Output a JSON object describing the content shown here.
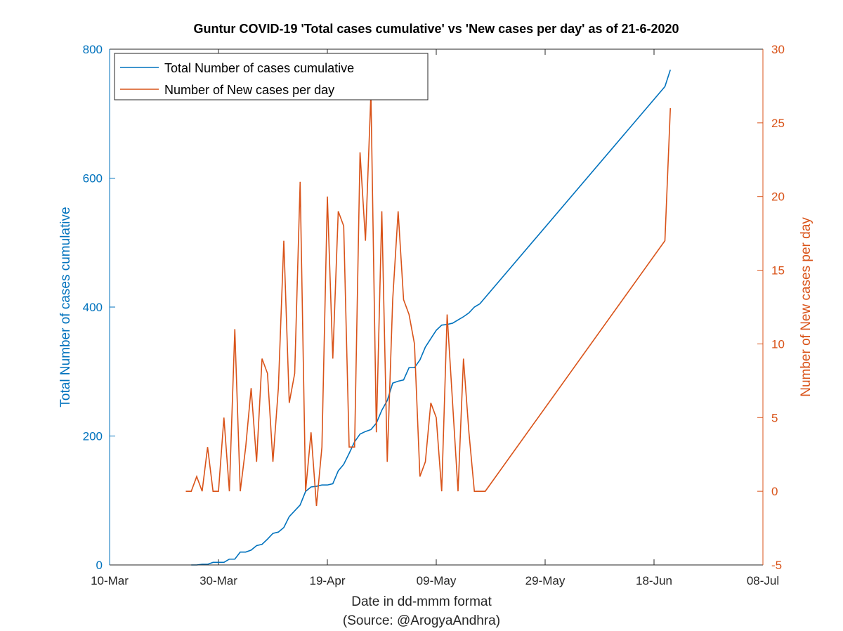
{
  "chart_data": {
    "type": "line",
    "title": "Guntur COVID-19 'Total cases cumulative' vs 'New cases per day' as of 21-6-2020",
    "xlabel": "Date in dd-mmm format",
    "source": "(Source: @ArogyaAndhra)",
    "ylabel_left": "Total Number of cases cumulative",
    "ylabel_right": "Number of New cases per day",
    "xlim": [
      "2020-03-10",
      "2020-07-08"
    ],
    "x_ticks": [
      "10-Mar",
      "30-Mar",
      "19-Apr",
      "09-May",
      "29-May",
      "18-Jun",
      "08-Jul"
    ],
    "ylim_left": [
      0,
      800
    ],
    "y_ticks_left": [
      "0",
      "200",
      "400",
      "600",
      "800"
    ],
    "ylim_right": [
      -5,
      30
    ],
    "y_ticks_right": [
      "-5",
      "0",
      "5",
      "10",
      "15",
      "20",
      "25",
      "30"
    ],
    "legend_position": "top-left",
    "grid": false,
    "colors": {
      "left": "#0072BD",
      "right": "#D95319",
      "axis": "#262626"
    },
    "series": [
      {
        "name": "Total Number of cases cumulative",
        "axis": "left",
        "color": "#0072BD",
        "x": [
          "2020-03-25",
          "2020-03-26",
          "2020-03-27",
          "2020-03-28",
          "2020-03-29",
          "2020-03-30",
          "2020-03-31",
          "2020-04-01",
          "2020-04-02",
          "2020-04-03",
          "2020-04-04",
          "2020-04-05",
          "2020-04-06",
          "2020-04-07",
          "2020-04-08",
          "2020-04-09",
          "2020-04-10",
          "2020-04-11",
          "2020-04-12",
          "2020-04-13",
          "2020-04-14",
          "2020-04-15",
          "2020-04-16",
          "2020-04-17",
          "2020-04-18",
          "2020-04-19",
          "2020-04-20",
          "2020-04-21",
          "2020-04-22",
          "2020-04-23",
          "2020-04-24",
          "2020-04-25",
          "2020-04-26",
          "2020-04-27",
          "2020-04-28",
          "2020-04-29",
          "2020-04-30",
          "2020-05-01",
          "2020-05-02",
          "2020-05-03",
          "2020-05-04",
          "2020-05-05",
          "2020-05-06",
          "2020-05-07",
          "2020-05-08",
          "2020-05-09",
          "2020-05-10",
          "2020-05-11",
          "2020-05-12",
          "2020-05-13",
          "2020-05-14",
          "2020-05-15",
          "2020-05-16",
          "2020-05-17",
          "2020-06-20",
          "2020-06-21"
        ],
        "values": [
          0,
          0,
          1,
          1,
          4,
          4,
          4,
          9,
          9,
          20,
          20,
          23,
          30,
          32,
          40,
          49,
          51,
          58,
          75,
          84,
          93,
          114,
          121,
          122,
          124,
          124,
          126,
          146,
          156,
          173,
          191,
          203,
          207,
          210,
          220,
          240,
          255,
          282,
          285,
          287,
          306,
          306,
          318,
          338,
          351,
          364,
          372,
          373,
          375,
          380,
          385,
          391,
          400,
          405,
          742,
          768
        ]
      },
      {
        "name": "Number of New cases per day",
        "axis": "right",
        "color": "#D95319",
        "x": [
          "2020-03-24",
          "2020-03-25",
          "2020-03-26",
          "2020-03-27",
          "2020-03-28",
          "2020-03-29",
          "2020-03-30",
          "2020-03-31",
          "2020-04-01",
          "2020-04-02",
          "2020-04-03",
          "2020-04-04",
          "2020-04-05",
          "2020-04-06",
          "2020-04-07",
          "2020-04-08",
          "2020-04-09",
          "2020-04-10",
          "2020-04-11",
          "2020-04-12",
          "2020-04-13",
          "2020-04-14",
          "2020-04-15",
          "2020-04-16",
          "2020-04-17",
          "2020-04-18",
          "2020-04-19",
          "2020-04-20",
          "2020-04-21",
          "2020-04-22",
          "2020-04-23",
          "2020-04-24",
          "2020-04-25",
          "2020-04-26",
          "2020-04-27",
          "2020-04-28",
          "2020-04-29",
          "2020-04-30",
          "2020-05-01",
          "2020-05-02",
          "2020-05-03",
          "2020-05-04",
          "2020-05-05",
          "2020-05-06",
          "2020-05-07",
          "2020-05-08",
          "2020-05-09",
          "2020-05-10",
          "2020-05-11",
          "2020-05-12",
          "2020-05-13",
          "2020-05-14",
          "2020-05-15",
          "2020-05-16",
          "2020-05-17",
          "2020-05-18",
          "2020-06-20",
          "2020-06-21"
        ],
        "values": [
          0,
          0,
          1,
          0,
          3,
          0,
          0,
          5,
          0,
          11,
          0,
          3,
          7,
          2,
          9,
          8,
          2,
          7,
          17,
          6,
          8,
          21,
          0,
          4,
          -1,
          3,
          20,
          9,
          19,
          18,
          3,
          3,
          23,
          17,
          27,
          4,
          19,
          2,
          13,
          19,
          13,
          12,
          10,
          1,
          2,
          6,
          5,
          0,
          12,
          6,
          0,
          9,
          4,
          0,
          0,
          0,
          17,
          26
        ]
      }
    ]
  }
}
